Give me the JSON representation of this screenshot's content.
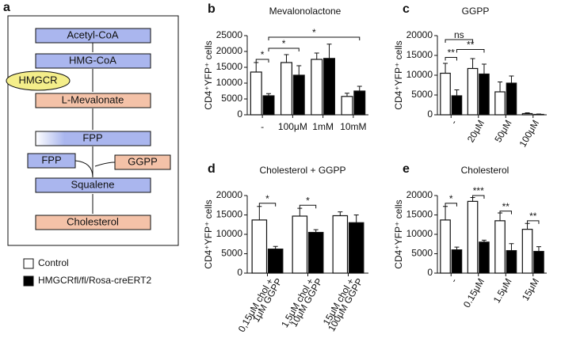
{
  "panels": [
    "a",
    "b",
    "c",
    "d",
    "e"
  ],
  "diagram": {
    "nodes": [
      "Acetyl-CoA",
      "HMG-CoA",
      "HMGCR",
      "L-Mevalonate",
      "FPP",
      "FPP",
      "GGPP",
      "Squalene",
      "Cholesterol"
    ]
  },
  "legend": [
    {
      "name": "Control",
      "color": "#ffffff"
    },
    {
      "name": "HMGCRfl/fl/Rosa-creERT2",
      "color": "#000000"
    }
  ],
  "chart_data": [
    {
      "type": "bar",
      "title": "Mevalonolactone",
      "y_label": "CD4⁺YFP⁺ cells",
      "categories": [
        "-",
        "100μM",
        "1mM",
        "10mM"
      ],
      "series": [
        {
          "color": "#ffffff",
          "values": [
            13500,
            16500,
            17500,
            5800
          ],
          "errors": [
            3000,
            2500,
            2000,
            1000
          ]
        },
        {
          "color": "#000000",
          "values": [
            6000,
            12500,
            17800,
            7500
          ],
          "errors": [
            700,
            3000,
            4500,
            1500
          ]
        }
      ],
      "ylim": [
        0,
        25000
      ],
      "yticks": [
        0,
        5000,
        10000,
        15000,
        20000,
        25000
      ],
      "annotations": [
        "*",
        "*",
        "*"
      ]
    },
    {
      "type": "bar",
      "title": "GGPP",
      "y_label": "CD4⁺YFP⁺ cells",
      "categories": [
        "-",
        "20μM",
        "50μM",
        "100μM"
      ],
      "series": [
        {
          "color": "#ffffff",
          "values": [
            10500,
            11700,
            5800,
            300
          ],
          "errors": [
            2500,
            2500,
            2500,
            200
          ]
        },
        {
          "color": "#000000",
          "values": [
            4800,
            10300,
            8000,
            100
          ],
          "errors": [
            1500,
            2500,
            1800,
            100
          ]
        }
      ],
      "ylim": [
        0,
        20000
      ],
      "yticks": [
        0,
        5000,
        10000,
        15000,
        20000
      ],
      "annotations": [
        "**",
        "ns",
        "**"
      ]
    },
    {
      "type": "bar",
      "title": "Cholesterol + GGPP",
      "y_label": "CD4⁺YFP⁺ cells",
      "categories": [
        [
          "0,15μM chol +",
          "1μM GGPP"
        ],
        [
          "1,5μM chol +",
          "10μM GGPP"
        ],
        [
          "15μM chol +",
          "100μM GGPP"
        ]
      ],
      "series": [
        {
          "color": "#ffffff",
          "values": [
            13700,
            14700,
            14800
          ],
          "errors": [
            3500,
            2000,
            1000
          ]
        },
        {
          "color": "#000000",
          "values": [
            6200,
            10500,
            13000
          ],
          "errors": [
            700,
            700,
            2000
          ]
        }
      ],
      "ylim": [
        0,
        20000
      ],
      "yticks": [
        0,
        5000,
        10000,
        15000,
        20000
      ],
      "annotations": [
        "*",
        "*"
      ]
    },
    {
      "type": "bar",
      "title": "Cholesterol",
      "y_label": "CD4⁺YFP⁺ cells",
      "categories": [
        "-",
        "0.15μM",
        "1.5μM",
        "15μM"
      ],
      "series": [
        {
          "color": "#ffffff",
          "values": [
            13700,
            18500,
            13500,
            11300
          ],
          "errors": [
            3500,
            1000,
            2000,
            1500
          ]
        },
        {
          "color": "#000000",
          "values": [
            6000,
            8000,
            5800,
            5600
          ],
          "errors": [
            700,
            500,
            1800,
            1200
          ]
        }
      ],
      "ylim": [
        0,
        20000
      ],
      "yticks": [
        0,
        5000,
        10000,
        15000,
        20000
      ],
      "annotations": [
        "*",
        "***",
        "**",
        "**"
      ]
    }
  ]
}
